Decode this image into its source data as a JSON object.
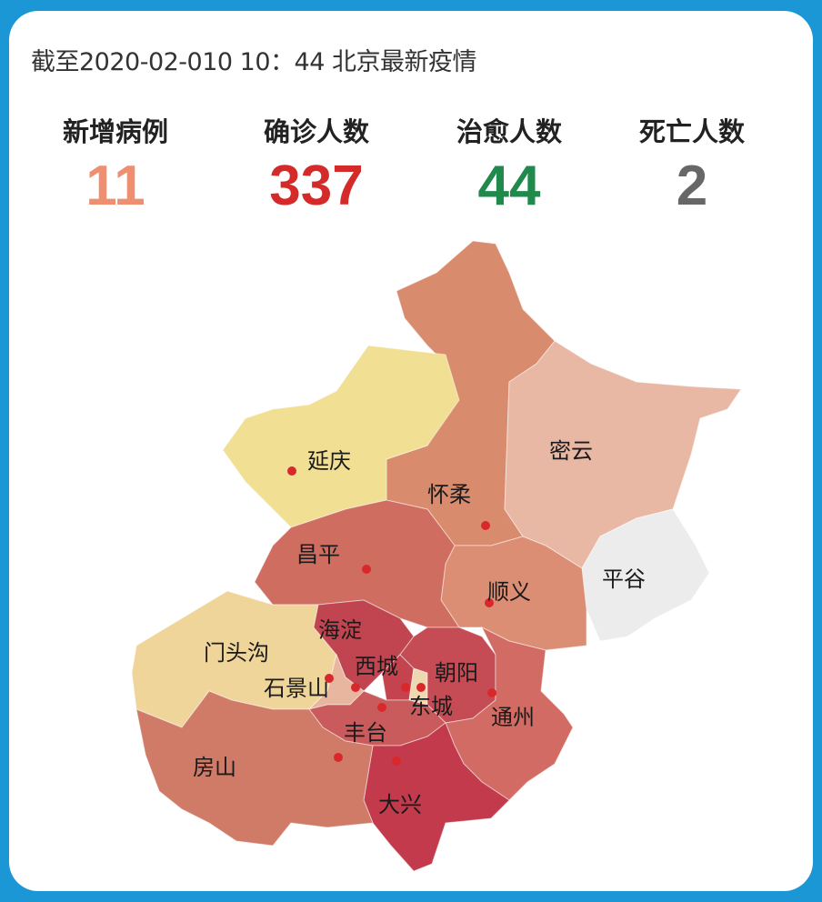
{
  "title": "截至2020-02-010 10：44 北京最新疫情",
  "stats": [
    {
      "label": "新增病例",
      "value": "11",
      "color": "#ef8f72"
    },
    {
      "label": "确诊人数",
      "value": "337",
      "color": "#d42a2a"
    },
    {
      "label": "治愈人数",
      "value": "44",
      "color": "#1f8a4c"
    },
    {
      "label": "死亡人数",
      "value": "2",
      "color": "#676767"
    }
  ],
  "districts": [
    {
      "id": "huairou",
      "name": "怀柔",
      "color": "#d98b6d"
    },
    {
      "id": "yanqing",
      "name": "延庆",
      "color": "#f1df93"
    },
    {
      "id": "miyun",
      "name": "密云",
      "color": "#e8b8a5"
    },
    {
      "id": "pinggu",
      "name": "平谷",
      "color": "#ececec"
    },
    {
      "id": "shunyi",
      "name": "顺义",
      "color": "#dc8e74"
    },
    {
      "id": "changping",
      "name": "昌平",
      "color": "#cf6e60"
    },
    {
      "id": "mentougou",
      "name": "门头沟",
      "color": "#efd59a"
    },
    {
      "id": "haidian",
      "name": "海淀",
      "color": "#c04550"
    },
    {
      "id": "shijingshan",
      "name": "石景山",
      "color": "#e8b69e"
    },
    {
      "id": "xicheng",
      "name": "西城",
      "color": "#c4434f"
    },
    {
      "id": "dongcheng",
      "name": "东城",
      "color": "#eed8b0"
    },
    {
      "id": "chaoyang",
      "name": "朝阳",
      "color": "#c54c55"
    },
    {
      "id": "fengtai",
      "name": "丰台",
      "color": "#c95b5c"
    },
    {
      "id": "tongzhou",
      "name": "通州",
      "color": "#d26b63"
    },
    {
      "id": "daxing",
      "name": "大兴",
      "color": "#c23a4b"
    },
    {
      "id": "fangshan",
      "name": "房山",
      "color": "#d07b67"
    }
  ],
  "marker_color": "#d8282c"
}
